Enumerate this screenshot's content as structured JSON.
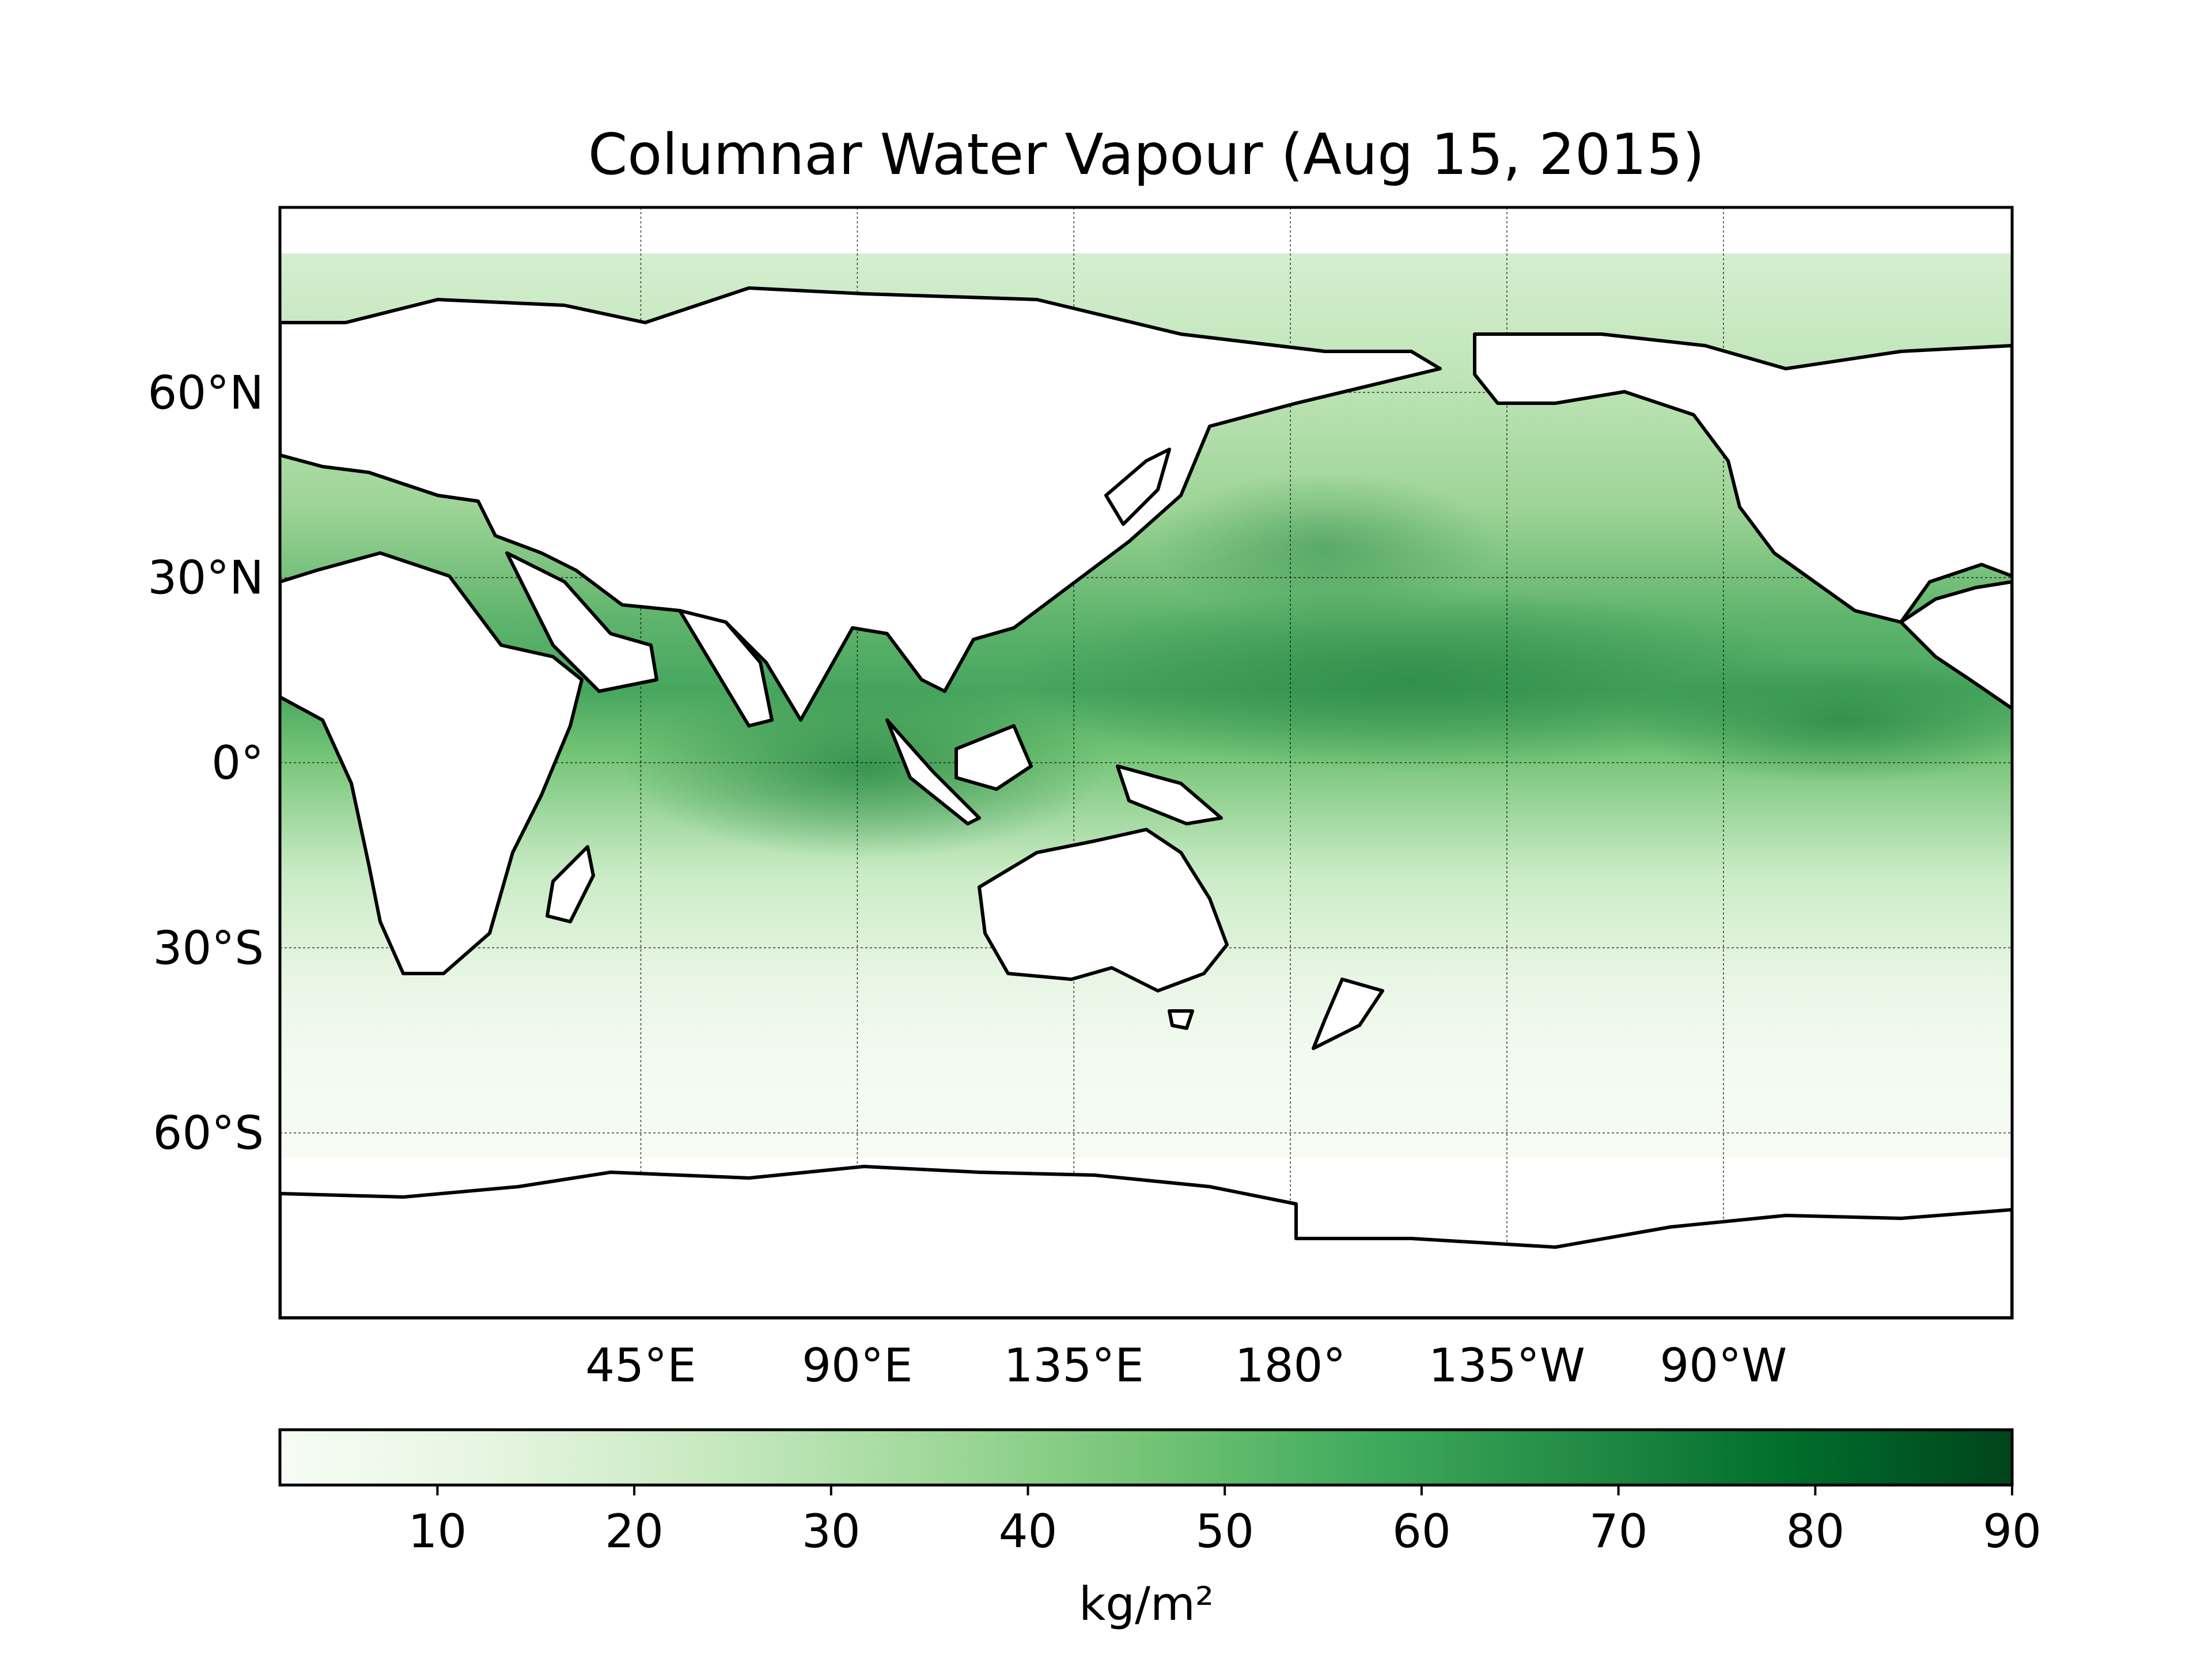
{
  "title": "Columnar Water Vapour (Aug 15, 2015)",
  "map": {
    "projection": "PlateCarree",
    "central_longitude": 150,
    "extent": {
      "lon": [
        -30,
        330
      ],
      "lat": [
        -90,
        90
      ]
    },
    "gridlines": true,
    "lat_ticks": [
      {
        "value": 60,
        "label": "60°N"
      },
      {
        "value": 30,
        "label": "30°N"
      },
      {
        "value": 0,
        "label": "0°"
      },
      {
        "value": -30,
        "label": "30°S"
      },
      {
        "value": -60,
        "label": "60°S"
      }
    ],
    "lon_ticks": [
      {
        "value": 45,
        "label": "45°E"
      },
      {
        "value": 90,
        "label": "90°E"
      },
      {
        "value": 135,
        "label": "135°E"
      },
      {
        "value": 180,
        "label": "180°"
      },
      {
        "value": 225,
        "label": "135°W"
      },
      {
        "value": 270,
        "label": "90°W"
      }
    ],
    "colormap": "Greens",
    "colors": {
      "low": "#f7fcf5",
      "mid": "#74c476",
      "high": "#00441b"
    }
  },
  "colorbar": {
    "range": [
      2,
      90
    ],
    "ticks": [
      10,
      20,
      30,
      40,
      50,
      60,
      70,
      80,
      90
    ],
    "label": "kg/m²"
  },
  "chart_data": {
    "type": "heatmap",
    "title": "Columnar Water Vapour (Aug 15, 2015)",
    "value_label": "kg/m²",
    "value_range": [
      2,
      90
    ],
    "description_of_field": "moisture maxima along tropical belt ~0-20N in W Pacific and Indian Ocean, low values at high southern latitudes; land masked white"
  }
}
